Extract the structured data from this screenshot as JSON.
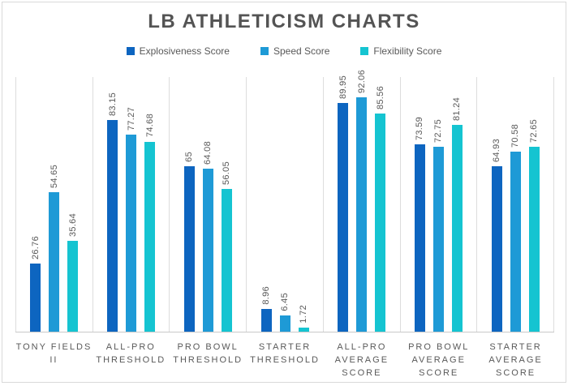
{
  "title": "LB ATHLETICISM CHARTS",
  "chart_data": {
    "type": "bar",
    "title": "LB ATHLETICISM CHARTS",
    "categories": [
      "TONY FIELDS II",
      "ALL-PRO THRESHOLD",
      "PRO BOWL THRESHOLD",
      "STARTER THRESHOLD",
      "ALL-PRO AVERAGE SCORE",
      "PRO BOWL AVERAGE SCORE",
      "STARTER AVERAGE SCORE"
    ],
    "categories_display": [
      [
        "TONY FIELDS",
        "II"
      ],
      [
        "ALL-PRO",
        "THRESHOLD"
      ],
      [
        "PRO BOWL",
        "THRESHOLD"
      ],
      [
        "STARTER",
        "THRESHOLD"
      ],
      [
        "ALL-PRO",
        "AVERAGE",
        "SCORE"
      ],
      [
        "PRO BOWL",
        "AVERAGE",
        "SCORE"
      ],
      [
        "STARTER",
        "AVERAGE",
        "SCORE"
      ]
    ],
    "series": [
      {
        "name": "Explosiveness Score",
        "color": "#0d65c0",
        "values": [
          26.76,
          83.15,
          65,
          8.96,
          89.95,
          73.59,
          64.93
        ],
        "labels": [
          "26.76",
          "83.15",
          "65",
          "8.96",
          "89.95",
          "73.59",
          "64.93"
        ]
      },
      {
        "name": "Speed Score",
        "color": "#1e9ad6",
        "values": [
          54.65,
          77.27,
          64.08,
          6.45,
          92.06,
          72.75,
          70.58
        ],
        "labels": [
          "54.65",
          "77.27",
          "64.08",
          "6.45",
          "92.06",
          "72.75",
          "70.58"
        ]
      },
      {
        "name": "Flexibility Score",
        "color": "#15c4d1",
        "values": [
          35.64,
          74.68,
          56.05,
          1.72,
          85.56,
          81.24,
          72.65
        ],
        "labels": [
          "35.64",
          "74.68",
          "56.05",
          "1.72",
          "85.56",
          "81.24",
          "72.65"
        ]
      }
    ],
    "ylim": [
      0,
      100
    ],
    "legend_position": "top",
    "data_labels": "rotated-90-above-bars",
    "grid": "vertical-category-separators"
  },
  "colors": {
    "title_text": "#545454",
    "label_text": "#595959",
    "gridline": "#dddddd",
    "axis_line": "#c8c8c8",
    "frame_border": "#d9d9d9",
    "background": "#ffffff"
  }
}
